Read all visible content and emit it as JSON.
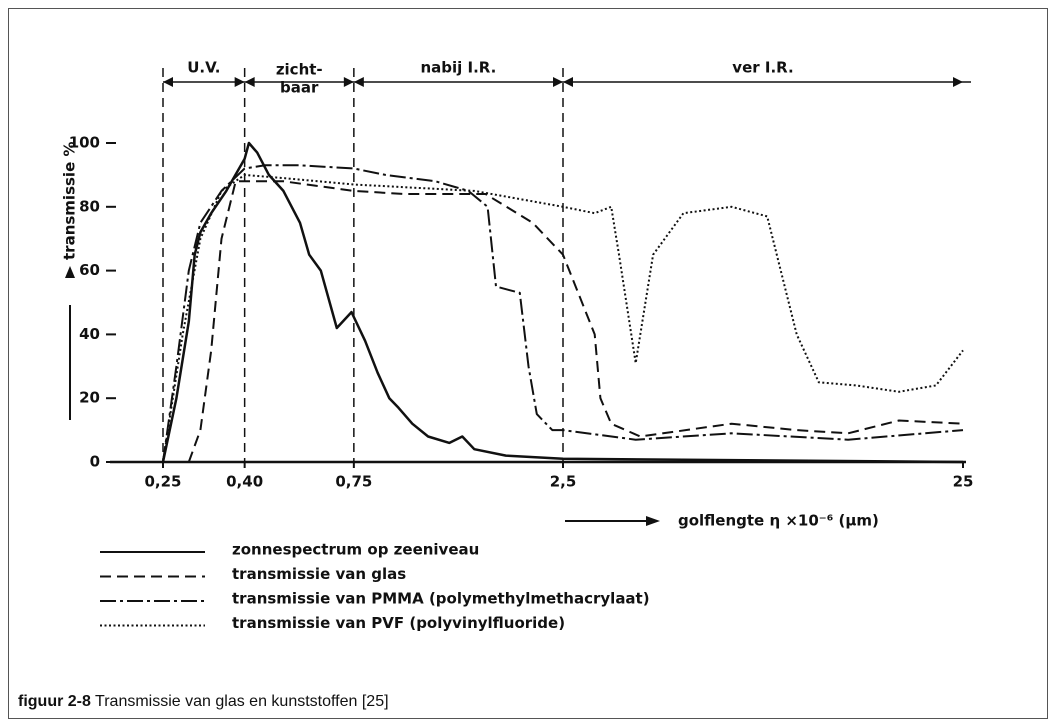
{
  "chart_data": {
    "type": "line",
    "ylabel": "transmissie %",
    "xlabel": "golflengte η ×10⁻⁶ (μm)",
    "caption_label": "figuur 2-8",
    "caption": "Transmissie van glas en kunststoffen [25]",
    "xscale": "log",
    "xlim": [
      0.25,
      25
    ],
    "xticks": [
      {
        "value": 0.25,
        "label": "0,25"
      },
      {
        "value": 0.4,
        "label": "0,40"
      },
      {
        "value": 0.75,
        "label": "0,75"
      },
      {
        "value": 2.5,
        "label": "2,5"
      },
      {
        "value": 25,
        "label": "25"
      }
    ],
    "ylim": [
      0,
      100
    ],
    "yticks": [
      0,
      20,
      40,
      60,
      80,
      100
    ],
    "regions": [
      {
        "lines": [
          "U.V."
        ],
        "from": 0.25,
        "to": 0.4
      },
      {
        "lines": [
          "zicht-",
          "baar"
        ],
        "from": 0.4,
        "to": 0.75
      },
      {
        "lines": [
          "nabij I.R."
        ],
        "from": 0.75,
        "to": 2.5
      },
      {
        "lines": [
          "ver I.R."
        ],
        "from": 2.5,
        "to": 25
      }
    ],
    "series": [
      {
        "name": "zonnespectrum op zeeniveau",
        "color": "#111111",
        "dash": "solid",
        "x": [
          0.25,
          0.27,
          0.29,
          0.3,
          0.31,
          0.33,
          0.36,
          0.4,
          0.41,
          0.43,
          0.46,
          0.5,
          0.55,
          0.58,
          0.62,
          0.68,
          0.74,
          0.8,
          0.86,
          0.92,
          0.97,
          1.05,
          1.15,
          1.3,
          1.4,
          1.5,
          1.8,
          2.5,
          25
        ],
        "values": [
          0,
          20,
          44,
          65,
          72,
          78,
          85,
          95,
          100,
          97,
          90,
          85,
          75,
          65,
          60,
          42,
          47,
          38,
          28,
          20,
          17,
          12,
          8,
          6,
          8,
          4,
          2,
          1,
          0
        ]
      },
      {
        "name": "transmissie van glas",
        "color": "#111111",
        "dash": "dashed",
        "x": [
          0.29,
          0.31,
          0.33,
          0.35,
          0.38,
          0.4,
          0.5,
          0.75,
          1.0,
          1.6,
          2.1,
          2.5,
          3.0,
          3.1,
          3.3,
          3.9,
          6.6,
          9.6,
          12.9,
          17.3,
          25
        ],
        "values": [
          0,
          10,
          35,
          70,
          88,
          88,
          88,
          85,
          84,
          84,
          75,
          65,
          40,
          20,
          12,
          8,
          12,
          10,
          9,
          13,
          12
        ]
      },
      {
        "name": "transmissie van PMMA (polymethylmethacrylaat)",
        "color": "#111111",
        "dash": "dashdot",
        "x": [
          0.25,
          0.27,
          0.29,
          0.31,
          0.35,
          0.4,
          0.45,
          0.55,
          0.75,
          0.9,
          1.2,
          1.45,
          1.62,
          1.7,
          1.95,
          2.05,
          2.15,
          2.35,
          2.5,
          3.8,
          6.6,
          12.9,
          25
        ],
        "values": [
          0,
          30,
          60,
          75,
          85,
          92,
          93,
          93,
          92,
          90,
          88,
          85,
          80,
          55,
          53,
          30,
          15,
          10,
          10,
          7,
          9,
          7,
          10
        ]
      },
      {
        "name": "transmissie van PVF (polyvinylfluoride)",
        "color": "#111111",
        "dash": "dotted",
        "x": [
          0.25,
          0.28,
          0.31,
          0.35,
          0.4,
          0.5,
          0.75,
          1.5,
          2.5,
          3.0,
          3.3,
          3.45,
          3.8,
          4.2,
          5.0,
          6.6,
          8.1,
          9.6,
          10.9,
          13.5,
          17.3,
          21.4,
          25
        ],
        "values": [
          0,
          40,
          70,
          85,
          90,
          89,
          87,
          85,
          80,
          78,
          80,
          65,
          31,
          65,
          78,
          80,
          77,
          40,
          25,
          24,
          22,
          24,
          35
        ]
      }
    ]
  }
}
